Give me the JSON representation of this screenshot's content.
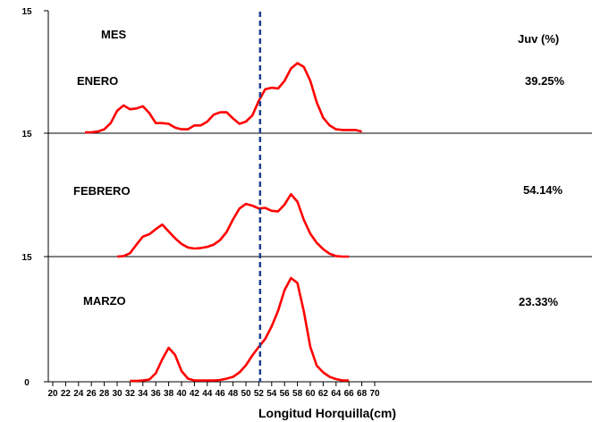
{
  "chart_data": {
    "type": "line",
    "xlabel": "Longitud Horquilla(cm)",
    "x_ticks": [
      "20",
      "22",
      "24",
      "26",
      "28",
      "30",
      "32",
      "34",
      "36",
      "38",
      "40",
      "42",
      "44",
      "46",
      "48",
      "50",
      "52",
      "54",
      "56",
      "58",
      "60",
      "62",
      "64",
      "66",
      "68",
      "70"
    ],
    "xlim": [
      20,
      70
    ],
    "y_tick_labels": [
      "15",
      "15",
      "15",
      "0"
    ],
    "header_left": "MES",
    "header_right": "Juv (%)",
    "reference_line": {
      "x": 52.2,
      "color": "#1f3f8f",
      "style": "dashed"
    },
    "series_color": "#ff0000",
    "panels": [
      {
        "name": "ENERO",
        "juv": "39.25%",
        "x": [
          25,
          26,
          27,
          28,
          29,
          30,
          31,
          32,
          33,
          34,
          35,
          36,
          37,
          38,
          39,
          40,
          41,
          42,
          43,
          44,
          45,
          46,
          47,
          48,
          49,
          50,
          51,
          52,
          53,
          54,
          55,
          56,
          57,
          58,
          59,
          60,
          61,
          62,
          63,
          64,
          65,
          66,
          67,
          68
        ],
        "y": [
          0.0,
          0.0,
          0.1,
          0.4,
          1.2,
          2.8,
          3.5,
          3.0,
          3.1,
          3.4,
          2.5,
          1.2,
          1.2,
          1.1,
          0.6,
          0.4,
          0.4,
          0.9,
          0.9,
          1.4,
          2.3,
          2.6,
          2.6,
          1.8,
          1.1,
          1.4,
          2.2,
          4.1,
          5.6,
          5.8,
          5.7,
          6.7,
          8.3,
          9.0,
          8.5,
          6.7,
          3.9,
          1.9,
          0.9,
          0.4,
          0.3,
          0.3,
          0.3,
          0.1
        ]
      },
      {
        "name": "FEBRERO",
        "juv": "54.14%",
        "x": [
          30,
          31,
          32,
          33,
          34,
          35,
          36,
          37,
          38,
          39,
          40,
          41,
          42,
          43,
          44,
          45,
          46,
          47,
          48,
          49,
          50,
          51,
          52,
          53,
          54,
          55,
          56,
          57,
          58,
          59,
          60,
          61,
          62,
          63,
          64,
          65,
          66
        ],
        "y": [
          0.0,
          0.1,
          0.6,
          2.1,
          3.5,
          3.9,
          4.8,
          5.6,
          4.4,
          3.2,
          2.2,
          1.6,
          1.4,
          1.5,
          1.7,
          2.1,
          2.9,
          4.3,
          6.5,
          8.4,
          9.2,
          8.9,
          8.4,
          8.5,
          8.0,
          7.9,
          9.1,
          10.9,
          9.6,
          6.4,
          4.0,
          2.4,
          1.3,
          0.5,
          0.1,
          0.0,
          0.0
        ]
      },
      {
        "name": "MARZO",
        "juv": "23.33%",
        "x": [
          32,
          33,
          34,
          35,
          36,
          37,
          38,
          39,
          40,
          41,
          42,
          43,
          44,
          45,
          46,
          47,
          48,
          49,
          50,
          51,
          52,
          53,
          54,
          55,
          56,
          57,
          58,
          59,
          60,
          61,
          62,
          63,
          64,
          65,
          66
        ],
        "y": [
          0.0,
          0.0,
          0.1,
          0.3,
          1.7,
          4.8,
          7.4,
          5.8,
          2.2,
          0.5,
          0.1,
          0.1,
          0.1,
          0.1,
          0.2,
          0.5,
          0.9,
          1.9,
          3.5,
          5.7,
          7.6,
          9.4,
          12.2,
          15.7,
          20.3,
          23.0,
          21.9,
          15.5,
          7.6,
          3.4,
          1.9,
          0.9,
          0.4,
          0.1,
          0.1
        ]
      }
    ]
  }
}
